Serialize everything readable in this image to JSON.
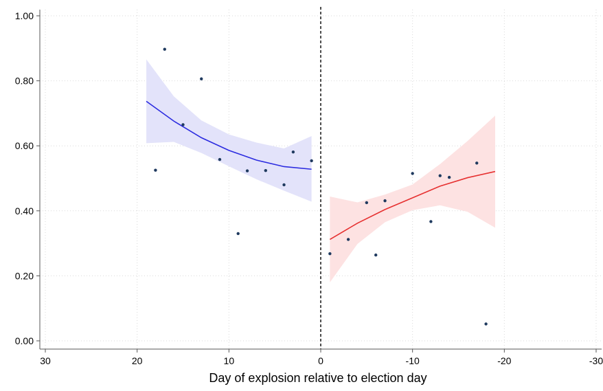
{
  "chart_data": {
    "type": "scatter",
    "xlabel": "Day of explosion relative to election day",
    "ylabel": "",
    "xlim": [
      30,
      -30
    ],
    "ylim": [
      0,
      1
    ],
    "x_reversed": true,
    "x_ticks": [
      30,
      20,
      10,
      0,
      -10,
      -20,
      -30
    ],
    "x_tick_labels": [
      "30",
      "20",
      "10",
      "0",
      "-10",
      "-20",
      "-30"
    ],
    "y_ticks": [
      0,
      0.2,
      0.4,
      0.6,
      0.8,
      1.0
    ],
    "y_tick_labels": [
      "0.00",
      "0.20",
      "0.40",
      "0.60",
      "0.80",
      "1.00"
    ],
    "grid": true,
    "cutoff_x": 0,
    "points": [
      {
        "x": 18,
        "y": 0.525
      },
      {
        "x": 17,
        "y": 0.897
      },
      {
        "x": 15,
        "y": 0.665
      },
      {
        "x": 13,
        "y": 0.806
      },
      {
        "x": 11,
        "y": 0.558
      },
      {
        "x": 9,
        "y": 0.33
      },
      {
        "x": 8,
        "y": 0.523
      },
      {
        "x": 6,
        "y": 0.524
      },
      {
        "x": 4,
        "y": 0.48
      },
      {
        "x": 3,
        "y": 0.581
      },
      {
        "x": 1,
        "y": 0.554
      },
      {
        "x": -1,
        "y": 0.268
      },
      {
        "x": -3,
        "y": 0.312
      },
      {
        "x": -5,
        "y": 0.425
      },
      {
        "x": -6,
        "y": 0.264
      },
      {
        "x": -7,
        "y": 0.431
      },
      {
        "x": -10,
        "y": 0.515
      },
      {
        "x": -12,
        "y": 0.367
      },
      {
        "x": -13,
        "y": 0.508
      },
      {
        "x": -14,
        "y": 0.503
      },
      {
        "x": -17,
        "y": 0.547
      },
      {
        "x": -18,
        "y": 0.052
      }
    ],
    "fits": [
      {
        "color": "#2b2be0",
        "band_color": "#e3e3fa",
        "x": [
          19,
          16,
          13,
          10,
          7,
          4,
          1
        ],
        "y": [
          0.737,
          0.676,
          0.625,
          0.586,
          0.556,
          0.536,
          0.528
        ],
        "lower": [
          0.608,
          0.612,
          0.578,
          0.537,
          0.497,
          0.462,
          0.428
        ],
        "upper": [
          0.866,
          0.752,
          0.678,
          0.635,
          0.61,
          0.592,
          0.63
        ]
      },
      {
        "color": "#e63030",
        "band_color": "#fde2e2",
        "x": [
          -1,
          -4,
          -7,
          -10,
          -13,
          -16,
          -19
        ],
        "y": [
          0.312,
          0.362,
          0.404,
          0.44,
          0.476,
          0.502,
          0.521
        ],
        "lower": [
          0.18,
          0.298,
          0.365,
          0.402,
          0.417,
          0.397,
          0.348
        ],
        "upper": [
          0.444,
          0.426,
          0.45,
          0.481,
          0.544,
          0.615,
          0.693
        ]
      }
    ],
    "colors": {
      "point": "#1f3a5f",
      "axis": "#555555",
      "grid": "#d9d9d9",
      "cutoff": "#000000"
    }
  }
}
